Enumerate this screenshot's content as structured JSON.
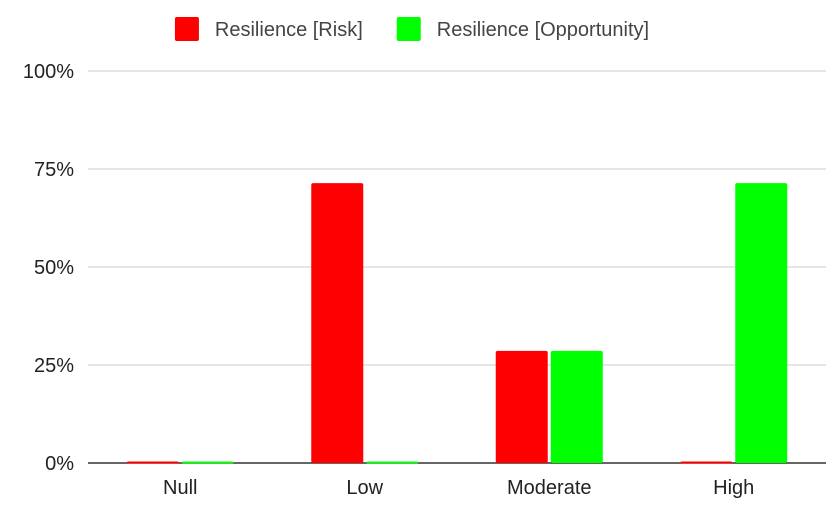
{
  "chart_data": {
    "type": "bar",
    "categories": [
      "Null",
      "Low",
      "Moderate",
      "High"
    ],
    "series": [
      {
        "name": "Resilience [Risk]",
        "color": "#ff0000",
        "values": [
          0,
          71.4,
          28.6,
          0
        ]
      },
      {
        "name": "Resilience [Opportunity]",
        "color": "#00ff00",
        "values": [
          0,
          0,
          28.6,
          71.4
        ]
      }
    ],
    "ylim": [
      0,
      100
    ],
    "yticks": [
      {
        "value": 0,
        "label": "0%"
      },
      {
        "value": 25,
        "label": "25%"
      },
      {
        "value": 50,
        "label": "50%"
      },
      {
        "value": 75,
        "label": "75%"
      },
      {
        "value": 100,
        "label": "100%"
      }
    ],
    "grid": true,
    "legend_position": "top",
    "title": "",
    "xlabel": "",
    "ylabel": ""
  }
}
